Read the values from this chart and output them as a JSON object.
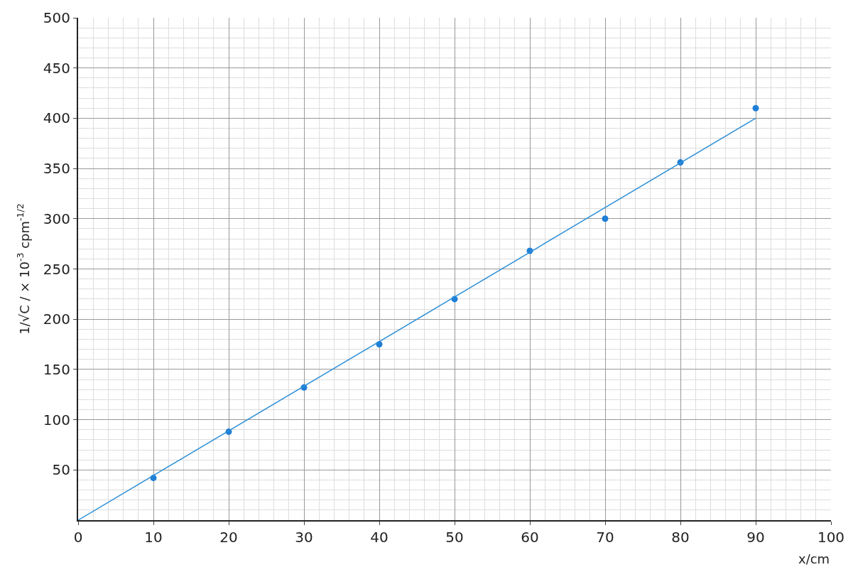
{
  "chart_data": {
    "type": "scatter",
    "xlabel": "x/cm",
    "ylabel": "1/√C / × 10$^{-3}$ cpm$^{-1/2}$",
    "x": [
      10,
      20,
      30,
      40,
      50,
      60,
      70,
      80,
      90
    ],
    "series": [
      {
        "color": "#1f7fd6",
        "marker": "circle",
        "values": [
          42,
          88,
          132,
          175,
          220,
          268,
          300,
          356,
          410
        ]
      },
      {
        "type": "line",
        "color": "#2b8fd8",
        "marker": "none",
        "x": [
          0,
          90
        ],
        "values": [
          0,
          400
        ]
      }
    ],
    "xlim": [
      0,
      100
    ],
    "ylim": [
      0,
      500
    ],
    "xticks": [
      0,
      10,
      20,
      30,
      40,
      50,
      60,
      70,
      80,
      90,
      100
    ],
    "yticks": [
      50,
      100,
      150,
      200,
      250,
      300,
      350,
      400,
      450,
      500
    ],
    "grid": true
  }
}
